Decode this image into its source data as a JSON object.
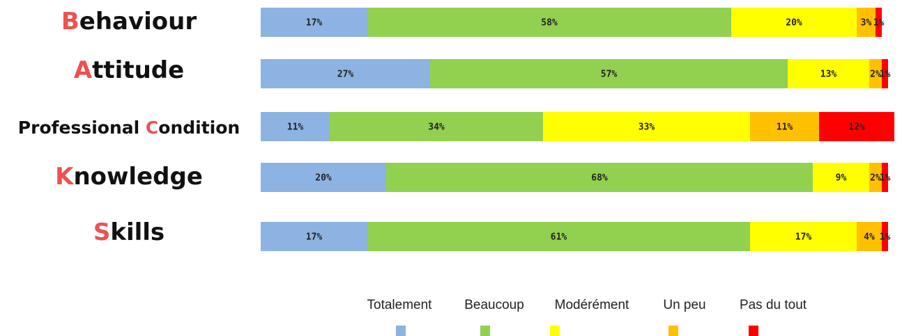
{
  "chart_data": {
    "type": "stacked-bar-horizontal",
    "categories": [
      "Behaviour",
      "Attitude",
      "Professional Condition",
      "Knowledge",
      "Skills"
    ],
    "series": [
      {
        "name": "Totalement",
        "color": "#8db3e2",
        "values": [
          17,
          27,
          11,
          20,
          17
        ],
        "value_labels": [
          "17%",
          "27%",
          "11%",
          "20%",
          "17%"
        ]
      },
      {
        "name": "Beaucoup",
        "color": "#92d050",
        "values": [
          58,
          57,
          34,
          68,
          61
        ],
        "value_labels": [
          "58%",
          "57%",
          "34%",
          "68%",
          "61%"
        ]
      },
      {
        "name": "Modérément",
        "color": "#ffff00",
        "values": [
          20,
          13,
          33,
          9,
          17
        ],
        "value_labels": [
          "20%",
          "13%",
          "33%",
          "9%",
          "17%"
        ]
      },
      {
        "name": "Un peu",
        "color": "#ffc000",
        "values": [
          3,
          2,
          11,
          2,
          4
        ],
        "value_labels": [
          "3%",
          "2%",
          "11%",
          "2%",
          "4%"
        ]
      },
      {
        "name": "Pas du tout",
        "color": "#ff0000",
        "values": [
          1,
          1,
          12,
          1,
          1
        ],
        "value_labels": [
          "1%",
          "1%",
          "12%",
          "1%",
          "1%"
        ]
      }
    ]
  }
}
